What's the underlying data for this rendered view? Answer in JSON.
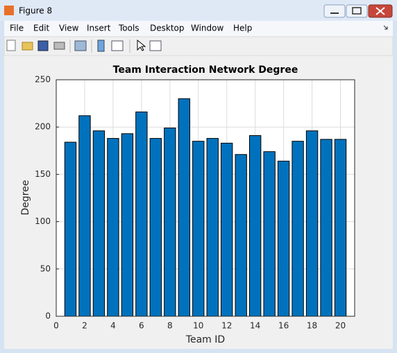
{
  "window": {
    "title": "Figure 8",
    "menu": [
      "File",
      "Edit",
      "View",
      "Insert",
      "Tools",
      "Desktop",
      "Window",
      "Help"
    ]
  },
  "chart_data": {
    "type": "bar",
    "title": "Team Interaction Network Degree",
    "xlabel": "Team ID",
    "ylabel": "Degree",
    "x": [
      1,
      2,
      3,
      4,
      5,
      6,
      7,
      8,
      9,
      10,
      11,
      12,
      13,
      14,
      15,
      16,
      17,
      18,
      19,
      20
    ],
    "values": [
      184,
      212,
      196,
      188,
      193,
      216,
      188,
      199,
      230,
      185,
      188,
      183,
      171,
      191,
      174,
      164,
      185,
      196,
      187,
      187
    ],
    "color": "#0072bd",
    "xlim": [
      0,
      21
    ],
    "xticks": [
      0,
      2,
      4,
      6,
      8,
      10,
      12,
      14,
      16,
      18,
      20
    ],
    "ylim": [
      0,
      250
    ],
    "yticks": [
      0,
      50,
      100,
      150,
      200,
      250
    ],
    "grid": true
  }
}
